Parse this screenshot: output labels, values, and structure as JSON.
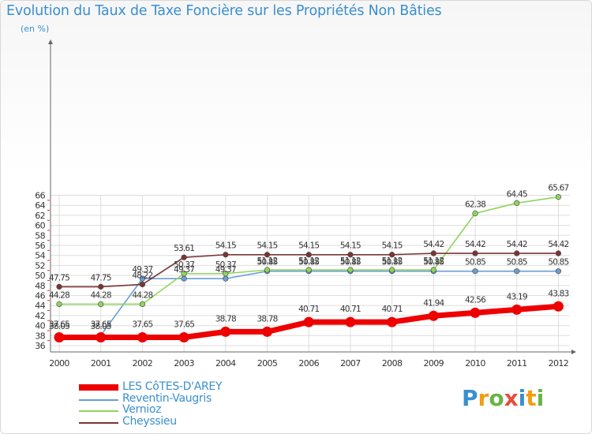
{
  "title": "Evolution du Taux de Taxe Foncière sur les Propriétés Non Bâties",
  "unit_label": "(en %)",
  "logo": {
    "text": "Proxiti",
    "letters": [
      "P",
      "r",
      "o",
      "x",
      "i",
      "t",
      "i"
    ],
    "colors": [
      "#3a8fcf",
      "#f39c12",
      "#6ab344",
      "#e74c3c",
      "#3a8fcf",
      "#f39c12",
      "#6ab344"
    ]
  },
  "chart_data": {
    "type": "line",
    "title": "Evolution du Taux de Taxe Foncière sur les Propriétés Non Bâties",
    "ylabel": "(en %)",
    "xlabel": "",
    "categories": [
      "2000",
      "2001",
      "2002",
      "2003",
      "2004",
      "2005",
      "2006",
      "2007",
      "2008",
      "2009",
      "2010",
      "2011",
      "2012"
    ],
    "ylim": [
      36,
      66
    ],
    "yticks": [
      36,
      38,
      40,
      42,
      44,
      46,
      48,
      50,
      52,
      54,
      56,
      58,
      60,
      62,
      64,
      66
    ],
    "grid": true,
    "series": [
      {
        "name": "Reventin-Vaugris",
        "color": "#6a9ed0",
        "values": [
          38.05,
          38.05,
          49.37,
          49.37,
          49.37,
          50.85,
          50.85,
          50.85,
          50.85,
          50.85,
          50.85,
          50.85,
          50.85
        ],
        "labels": [
          "38.05",
          "38.05",
          "49.37",
          "49.37",
          "49.37",
          "50.85",
          "50.85",
          "50.85",
          "50.85",
          "50.85",
          "50.85",
          "50.85",
          "50.85"
        ]
      },
      {
        "name": "Vernioz",
        "color": "#8fd45e",
        "values": [
          44.28,
          44.28,
          44.28,
          50.37,
          50.37,
          51.12,
          51.12,
          51.12,
          51.12,
          51.12,
          62.38,
          64.45,
          65.67
        ],
        "labels": [
          "44.28",
          "44.28",
          "44.28",
          "50.37",
          "50.37",
          "51.12",
          "51.12",
          "51.12",
          "51.12",
          "51.12",
          "62.38",
          "64.45",
          "65.67"
        ]
      },
      {
        "name": "Cheyssieu",
        "color": "#7a3535",
        "values": [
          47.75,
          47.75,
          48.22,
          53.61,
          54.15,
          54.15,
          54.15,
          54.15,
          54.15,
          54.42,
          54.42,
          54.42,
          54.42
        ],
        "labels": [
          "47.75",
          "47.75",
          "48.22",
          "53.61",
          "54.15",
          "54.15",
          "54.15",
          "54.15",
          "54.15",
          "54.42",
          "54.42",
          "54.42",
          "54.42"
        ]
      },
      {
        "name": "LES CôTES-D'AREY",
        "color": "#ee0000",
        "values": [
          37.65,
          37.65,
          37.65,
          37.65,
          38.78,
          38.78,
          40.71,
          40.71,
          40.71,
          41.94,
          42.56,
          43.19,
          43.83
        ],
        "labels": [
          "37.65",
          "37.65",
          "37.65",
          "37.65",
          "38.78",
          "38.78",
          "40.71",
          "40.71",
          "40.71",
          "41.94",
          "42.56",
          "43.19",
          "43.83"
        ]
      }
    ]
  },
  "legend": [
    {
      "name": "LES CôTES-D'AREY",
      "color": "#ee0000",
      "thick": true
    },
    {
      "name": "Reventin-Vaugris",
      "color": "#6a9ed0",
      "thick": false
    },
    {
      "name": "Vernioz",
      "color": "#8fd45e",
      "thick": false
    },
    {
      "name": "Cheyssieu",
      "color": "#7a3535",
      "thick": false
    }
  ]
}
